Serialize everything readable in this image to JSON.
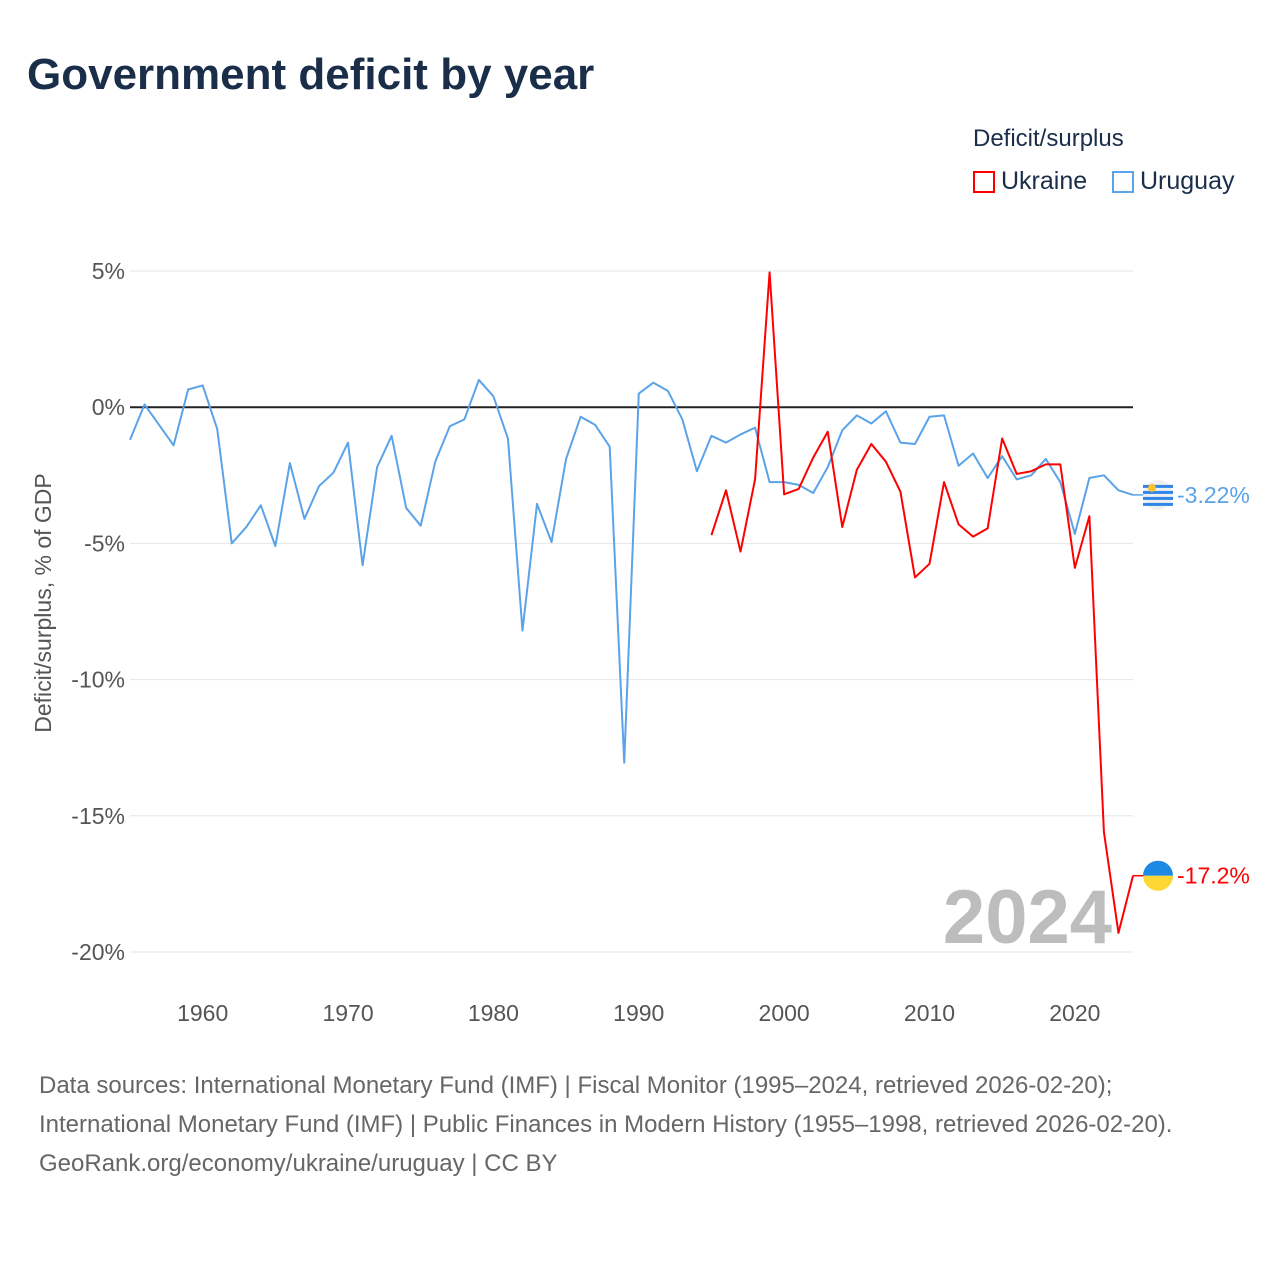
{
  "title": "Government deficit by year",
  "legend": {
    "title": "Deficit/surplus",
    "items": [
      {
        "label": "Ukraine",
        "color": "#ff0000"
      },
      {
        "label": "Uruguay",
        "color": "#5aa3e8"
      }
    ]
  },
  "watermark_year": "2024",
  "footer": {
    "sources": "Data sources: International Monetary Fund (IMF) | Fiscal Monitor (1995–2024, retrieved 2026-02-20); International Monetary Fund (IMF) | Public Finances in Modern History (1955–1998, retrieved 2026-02-20).",
    "link": "GeoRank.org/economy/ukraine/uruguay | CC BY"
  },
  "chart_data": {
    "type": "line",
    "title": "Government deficit by year",
    "xlabel": "",
    "ylabel": "Deficit/surplus, % of GDP",
    "xlim": [
      1955,
      2024
    ],
    "ylim": [
      -20,
      5
    ],
    "xticks": [
      1960,
      1970,
      1980,
      1990,
      2000,
      2010,
      2020
    ],
    "yticks": [
      {
        "v": 5,
        "label": "5%"
      },
      {
        "v": 0,
        "label": "0%"
      },
      {
        "v": -5,
        "label": "-5%"
      },
      {
        "v": -10,
        "label": "-10%"
      },
      {
        "v": -15,
        "label": "-15%"
      },
      {
        "v": -20,
        "label": "-20%"
      }
    ],
    "grid": true,
    "legend_position": "top-right",
    "series": [
      {
        "name": "Uruguay",
        "color": "#5aa3e8",
        "end_label": "-3.22%",
        "start_year": 1955,
        "values": [
          -1.2,
          0.1,
          -0.65,
          -1.4,
          0.65,
          0.8,
          -0.8,
          -5.0,
          -4.4,
          -3.6,
          -5.1,
          -2.05,
          -4.1,
          -2.9,
          -2.4,
          -1.3,
          -5.8,
          -2.2,
          -1.05,
          -3.7,
          -4.35,
          -2.0,
          -0.7,
          -0.45,
          1.0,
          0.4,
          -1.15,
          -8.2,
          -3.55,
          -4.95,
          -1.9,
          -0.35,
          -0.65,
          -1.45,
          -13.05,
          0.5,
          0.9,
          0.6,
          -0.45,
          -2.35,
          -1.05,
          -1.3,
          -1.0,
          -0.75,
          -2.75,
          -2.75,
          -2.85,
          -3.15,
          -2.2,
          -0.85,
          -0.3,
          -0.6,
          -0.15,
          -1.3,
          -1.35,
          -0.35,
          -0.3,
          -2.15,
          -1.7,
          -2.6,
          -1.8,
          -2.65,
          -2.5,
          -1.9,
          -2.75,
          -4.65,
          -2.6,
          -2.5,
          -3.05,
          -3.22
        ]
      },
      {
        "name": "Ukraine",
        "color": "#ff0000",
        "end_label": "-17.2%",
        "start_year": 1995,
        "values": [
          -4.7,
          -3.05,
          -5.3,
          -2.65,
          4.95,
          -3.2,
          -3.0,
          -1.85,
          -0.9,
          -4.4,
          -2.3,
          -1.35,
          -2.0,
          -3.1,
          -6.25,
          -5.75,
          -2.75,
          -4.3,
          -4.75,
          -4.45,
          -1.15,
          -2.45,
          -2.35,
          -2.1,
          -2.1,
          -5.9,
          -4.0,
          -15.6,
          -19.3,
          -17.2
        ]
      }
    ]
  }
}
